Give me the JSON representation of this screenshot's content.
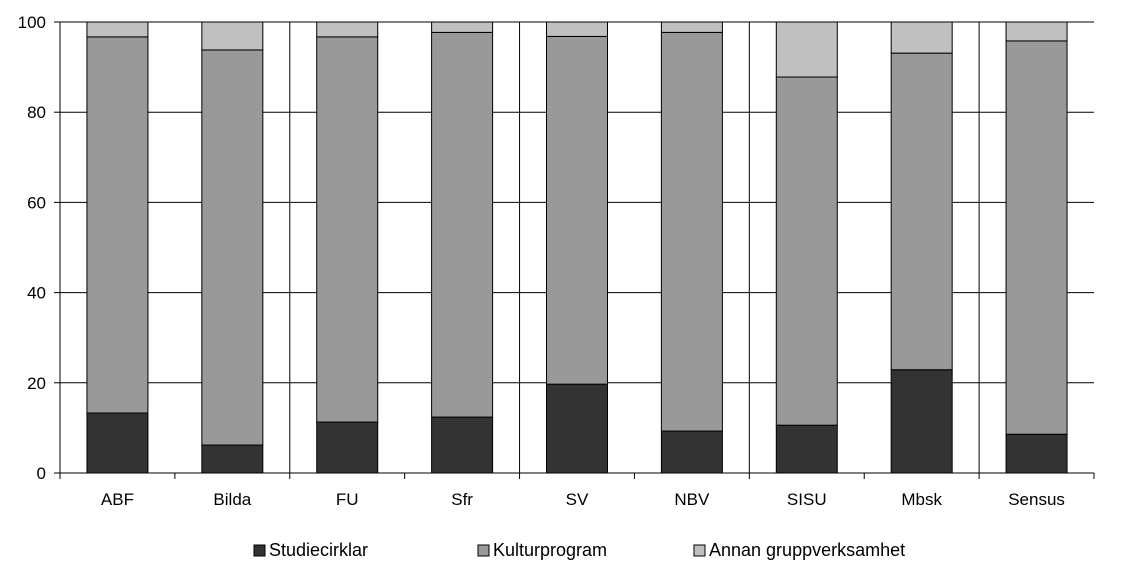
{
  "chart_data": {
    "type": "bar",
    "stacked": true,
    "categories": [
      "ABF",
      "Bilda",
      "FU",
      "Sfr",
      "SV",
      "NBV",
      "SISU",
      "Mbsk",
      "Sensus"
    ],
    "series": [
      {
        "name": "Studiecirklar",
        "color": "#333333",
        "values": [
          13.3,
          6.2,
          11.3,
          12.4,
          19.7,
          9.3,
          10.6,
          22.9,
          8.6
        ]
      },
      {
        "name": "Kulturprogram",
        "color": "#999999",
        "values": [
          83.4,
          87.6,
          85.4,
          85.3,
          77.1,
          88.4,
          77.2,
          70.2,
          87.2
        ]
      },
      {
        "name": "Annan gruppverksamhet",
        "color": "#c0c0c0",
        "values": [
          3.3,
          6.2,
          3.3,
          2.3,
          3.2,
          2.3,
          12.2,
          6.9,
          4.2
        ]
      }
    ],
    "ylim": [
      0,
      100
    ],
    "yticks": [
      "0",
      "20",
      "40",
      "60",
      "80",
      "100"
    ],
    "title": "",
    "xlabel": "",
    "ylabel": "",
    "grid": true,
    "legend_position": "bottom"
  }
}
